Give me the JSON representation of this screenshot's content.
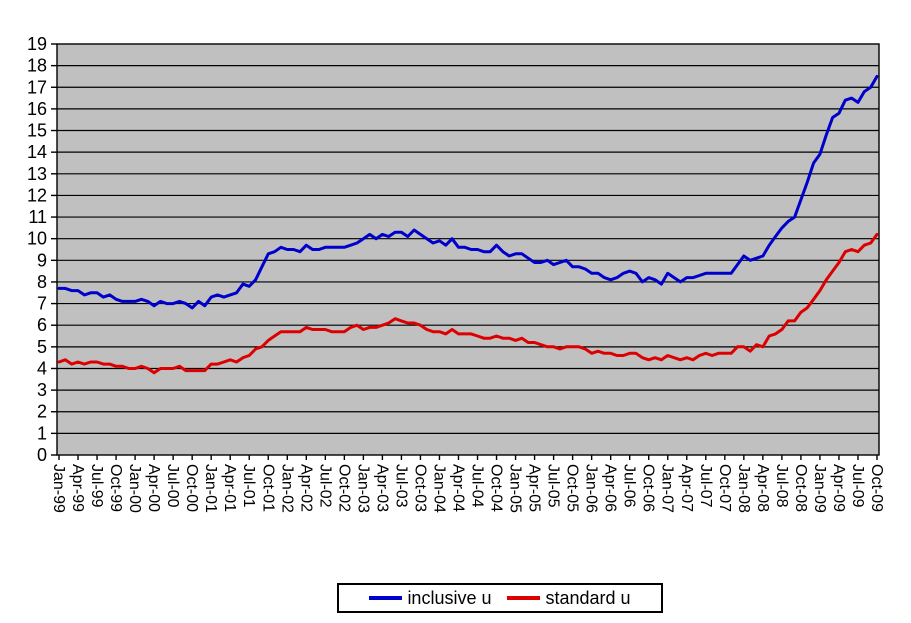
{
  "chart_data": {
    "type": "line",
    "title": "",
    "xlabel": "",
    "ylabel": "",
    "ylim": [
      0,
      19
    ],
    "y_tick_step": 1,
    "grid": "horizontal",
    "plot_bg_color": "#C0C0C0",
    "gridline_color": "#000000",
    "x_start": "Jan-99",
    "x_frequency": "monthly",
    "x_label_every": 3,
    "x_tick_labels": [
      "Jan-99",
      "Apr-99",
      "Jul-99",
      "Oct-99",
      "Jan-00",
      "Apr-00",
      "Jul-00",
      "Oct-00",
      "Jan-01",
      "Apr-01",
      "Jul-01",
      "Oct-01",
      "Jan-02",
      "Apr-02",
      "Jul-02",
      "Oct-02",
      "Jan-03",
      "Apr-03",
      "Jul-03",
      "Oct-03",
      "Jan-04",
      "Apr-04",
      "Jul-04",
      "Oct-04",
      "Jan-05",
      "Apr-05",
      "Jul-05",
      "Oct-05",
      "Jan-06",
      "Apr-06",
      "Jul-06",
      "Oct-06",
      "Jan-07",
      "Apr-07",
      "Jul-07",
      "Oct-07",
      "Jan-08",
      "Apr-08",
      "Jul-08",
      "Oct-08",
      "Jan-09",
      "Apr-09",
      "Jul-09",
      "Oct-09"
    ],
    "legend_position": "bottom-center",
    "series": [
      {
        "name": "inclusive u",
        "color": "#0000CC",
        "values": [
          7.7,
          7.7,
          7.6,
          7.6,
          7.4,
          7.5,
          7.5,
          7.3,
          7.4,
          7.2,
          7.1,
          7.1,
          7.1,
          7.2,
          7.1,
          6.9,
          7.1,
          7.0,
          7.0,
          7.1,
          7.0,
          6.8,
          7.1,
          6.9,
          7.3,
          7.4,
          7.3,
          7.4,
          7.5,
          7.9,
          7.8,
          8.1,
          8.7,
          9.3,
          9.4,
          9.6,
          9.5,
          9.5,
          9.4,
          9.7,
          9.5,
          9.5,
          9.6,
          9.6,
          9.6,
          9.6,
          9.7,
          9.8,
          10.0,
          10.2,
          10.0,
          10.2,
          10.1,
          10.3,
          10.3,
          10.1,
          10.4,
          10.2,
          10.0,
          9.8,
          9.9,
          9.7,
          10.0,
          9.6,
          9.6,
          9.5,
          9.5,
          9.4,
          9.4,
          9.7,
          9.4,
          9.2,
          9.3,
          9.3,
          9.1,
          8.9,
          8.9,
          9.0,
          8.8,
          8.9,
          9.0,
          8.7,
          8.7,
          8.6,
          8.4,
          8.4,
          8.2,
          8.1,
          8.2,
          8.4,
          8.5,
          8.4,
          8.0,
          8.2,
          8.1,
          7.9,
          8.4,
          8.2,
          8.0,
          8.2,
          8.2,
          8.3,
          8.4,
          8.4,
          8.4,
          8.4,
          8.4,
          8.8,
          9.2,
          9.0,
          9.1,
          9.2,
          9.7,
          10.1,
          10.5,
          10.8,
          11.0,
          11.8,
          12.6,
          13.5,
          13.9,
          14.8,
          15.6,
          15.8,
          16.4,
          16.5,
          16.3,
          16.8,
          17.0,
          17.5
        ]
      },
      {
        "name": "standard u",
        "color": "#DD0000",
        "values": [
          4.3,
          4.4,
          4.2,
          4.3,
          4.2,
          4.3,
          4.3,
          4.2,
          4.2,
          4.1,
          4.1,
          4.0,
          4.0,
          4.1,
          4.0,
          3.8,
          4.0,
          4.0,
          4.0,
          4.1,
          3.9,
          3.9,
          3.9,
          3.9,
          4.2,
          4.2,
          4.3,
          4.4,
          4.3,
          4.5,
          4.6,
          4.9,
          5.0,
          5.3,
          5.5,
          5.7,
          5.7,
          5.7,
          5.7,
          5.9,
          5.8,
          5.8,
          5.8,
          5.7,
          5.7,
          5.7,
          5.9,
          6.0,
          5.8,
          5.9,
          5.9,
          6.0,
          6.1,
          6.3,
          6.2,
          6.1,
          6.1,
          6.0,
          5.8,
          5.7,
          5.7,
          5.6,
          5.8,
          5.6,
          5.6,
          5.6,
          5.5,
          5.4,
          5.4,
          5.5,
          5.4,
          5.4,
          5.3,
          5.4,
          5.2,
          5.2,
          5.1,
          5.0,
          5.0,
          4.9,
          5.0,
          5.0,
          5.0,
          4.9,
          4.7,
          4.8,
          4.7,
          4.7,
          4.6,
          4.6,
          4.7,
          4.7,
          4.5,
          4.4,
          4.5,
          4.4,
          4.6,
          4.5,
          4.4,
          4.5,
          4.4,
          4.6,
          4.7,
          4.6,
          4.7,
          4.7,
          4.7,
          5.0,
          5.0,
          4.8,
          5.1,
          5.0,
          5.5,
          5.6,
          5.8,
          6.2,
          6.2,
          6.6,
          6.8,
          7.2,
          7.6,
          8.1,
          8.5,
          8.9,
          9.4,
          9.5,
          9.4,
          9.7,
          9.8,
          10.2
        ]
      }
    ]
  }
}
